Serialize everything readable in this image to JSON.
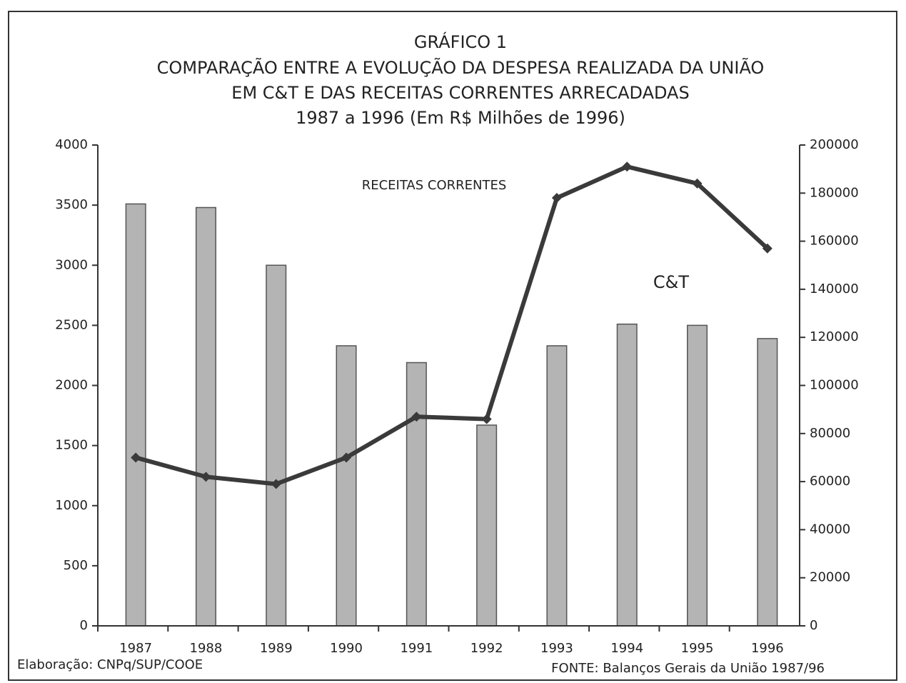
{
  "chart_data": {
    "type": "bar",
    "title": [
      "GRÁFICO 1",
      "COMPARAÇÃO ENTRE A EVOLUÇÃO DA DESPESA REALIZADA DA UNIÃO",
      "EM C&T E DAS RECEITAS CORRENTES ARRECADADAS",
      "1987 a 1996  (Em R$ Milhões de 1996)"
    ],
    "categories": [
      "1987",
      "1988",
      "1989",
      "1990",
      "1991",
      "1992",
      "1993",
      "1994",
      "1995",
      "1996"
    ],
    "series": [
      {
        "name": "C&T",
        "type": "bar",
        "color": "#b4b4b4",
        "values": [
          3510,
          3480,
          3000,
          2330,
          2190,
          1670,
          2330,
          2510,
          2500,
          2390
        ]
      },
      {
        "name": "RECEITAS CORRENTES",
        "type": "line",
        "axis": "y2",
        "color": "#3a3a3a",
        "values": [
          70000,
          62000,
          59000,
          70000,
          87000,
          86000,
          178000,
          191000,
          184000,
          157000
        ]
      }
    ],
    "ylim": [
      0,
      4000
    ],
    "yticks": [
      0,
      500,
      1000,
      1500,
      2000,
      2500,
      3000,
      3500,
      4000
    ],
    "y2lim": [
      0,
      200000
    ],
    "y2ticks": [
      0,
      20000,
      40000,
      60000,
      80000,
      100000,
      120000,
      140000,
      160000,
      180000,
      200000
    ],
    "notes": [
      "Elaboração: CNPq/SUP/COOE",
      "FONTE: Balanços Gerais da União 1987/96"
    ]
  }
}
